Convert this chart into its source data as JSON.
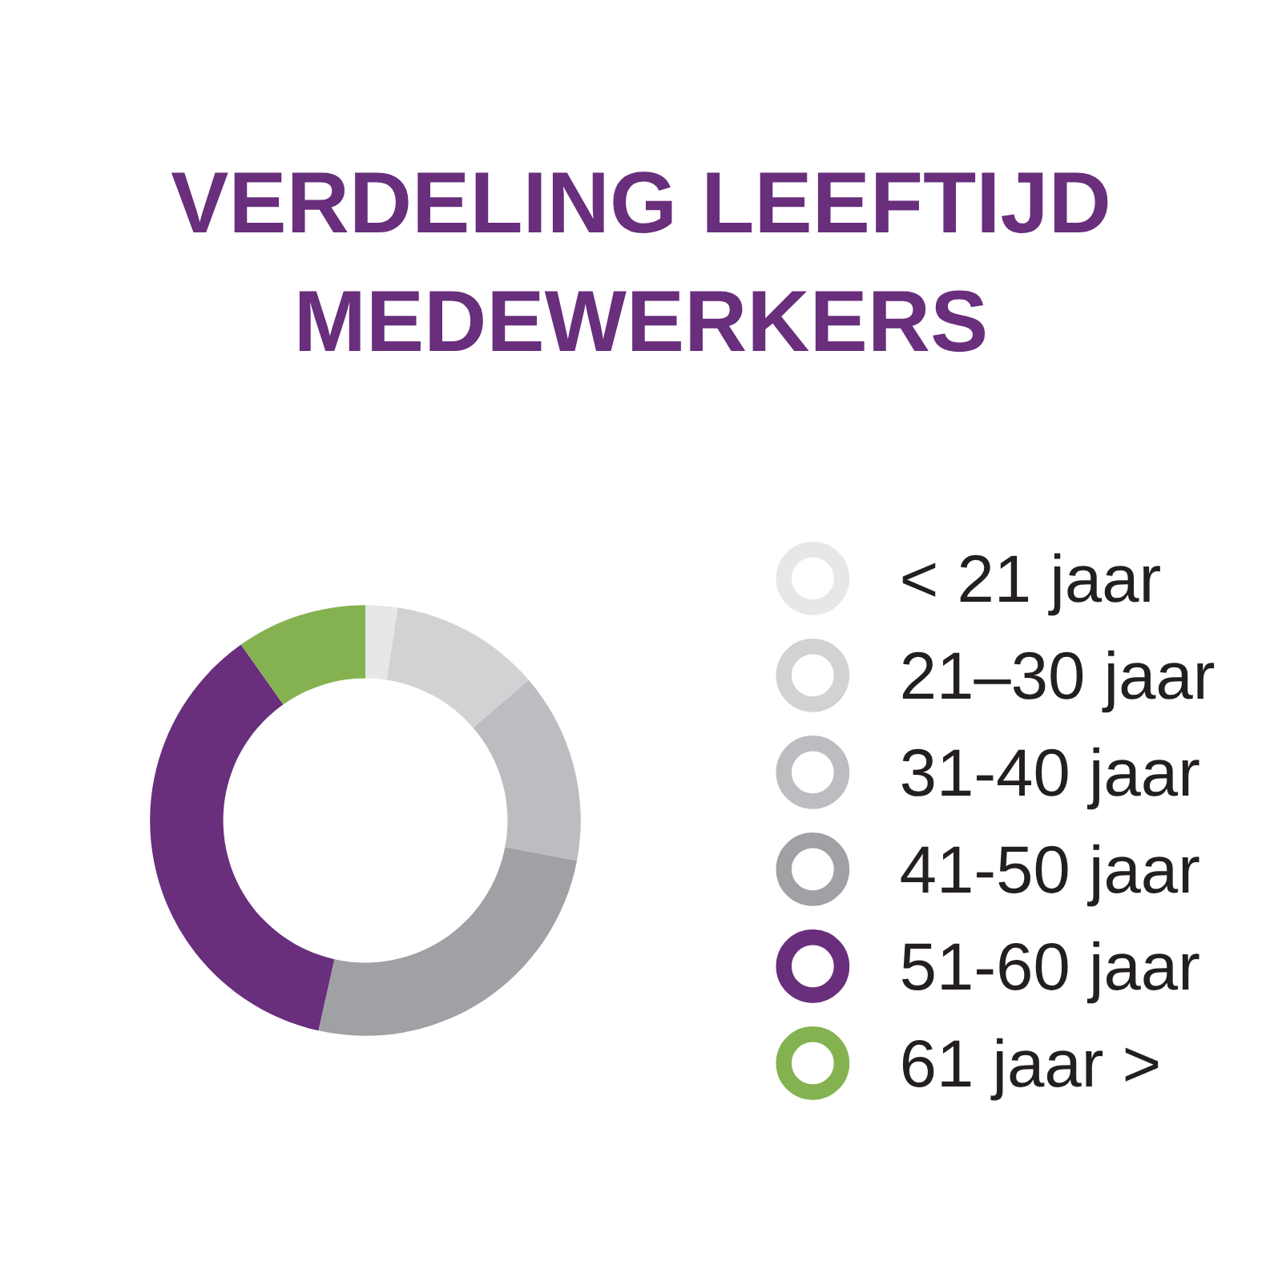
{
  "chart_data": {
    "type": "donut",
    "title": "VERDELING LEEFTIJD\nMEDEWERKERS",
    "categories": [
      "< 21 jaar",
      "21–30 jaar",
      "31-40 jaar",
      "41-50 jaar",
      "51-60 jaar",
      "61 jaar >"
    ],
    "values": [
      2.4,
      11.3,
      14.3,
      25.5,
      36.7,
      9.8
    ],
    "colors": [
      "#e6e7e8",
      "#d1d2d4",
      "#bcbdc0",
      "#a0a1a4",
      "#692e7c",
      "#84b250"
    ],
    "legend": "right"
  }
}
